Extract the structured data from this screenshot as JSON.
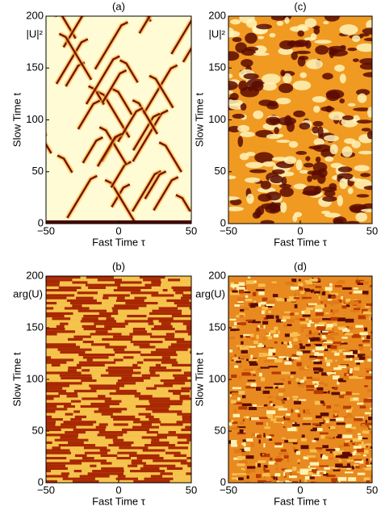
{
  "chart_data": [
    {
      "type": "heatmap",
      "title": "(a)",
      "annotation": "|U|²",
      "x_label": "Fast Time τ",
      "y_label": "Slow Time t",
      "xlim": [
        -50,
        50
      ],
      "xticks": [
        {
          "value": -50,
          "label": "−50"
        },
        0,
        50
      ],
      "ylim": [
        0,
        200
      ],
      "yticks": [
        0,
        50,
        100,
        150,
        200
      ]
    },
    {
      "type": "heatmap",
      "title": "(c)",
      "annotation": "|U|²",
      "x_label": "Fast Time τ",
      "y_label": "Slow Time t",
      "xlim": [
        -50,
        50
      ],
      "xticks": [
        {
          "value": -50,
          "label": "−50"
        },
        0,
        50
      ],
      "ylim": [
        0,
        200
      ],
      "yticks": [
        0,
        50,
        100,
        150,
        200
      ]
    },
    {
      "type": "heatmap",
      "title": "(b)",
      "annotation": "arg(U)",
      "x_label": "Fast Time τ",
      "y_label": "Slow Time t",
      "xlim": [
        -50,
        50
      ],
      "xticks": [
        {
          "value": -50,
          "label": "−50"
        },
        0,
        50
      ],
      "ylim": [
        0,
        200
      ],
      "yticks": [
        0,
        50,
        100,
        150,
        200
      ]
    },
    {
      "type": "heatmap",
      "title": "(d)",
      "annotation": "arg(U)",
      "x_label": "Fast Time τ",
      "y_label": "Slow Time t",
      "xlim": [
        -50,
        50
      ],
      "xticks": [
        {
          "value": -50,
          "label": "−50"
        },
        0,
        50
      ],
      "ylim": [
        0,
        200
      ],
      "yticks": [
        0,
        50,
        100,
        150,
        200
      ]
    }
  ]
}
